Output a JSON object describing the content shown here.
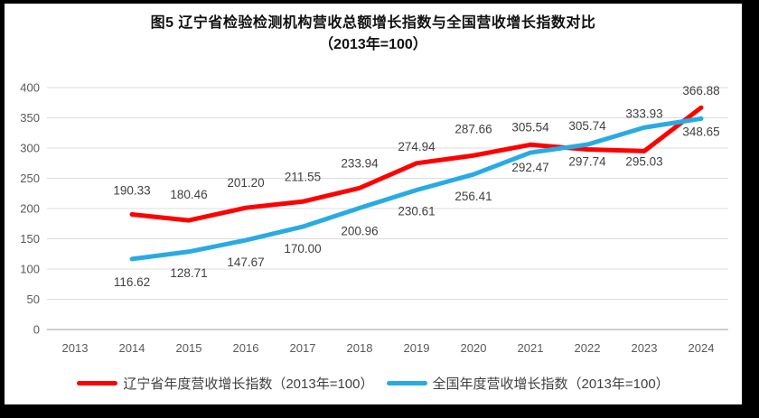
{
  "chart_data": {
    "type": "line",
    "title": "图5  辽宁省检验检测机构营收总额增长指数与全国营收增长指数对比",
    "subtitle": "（2013年=100）",
    "xlabel": "",
    "ylabel": "",
    "categories": [
      "2013",
      "2014",
      "2015",
      "2016",
      "2017",
      "2018",
      "2019",
      "2020",
      "2021",
      "2022",
      "2023",
      "2024"
    ],
    "ylim": [
      0,
      400
    ],
    "ytick_step": 50,
    "grid": true,
    "legend_position": "bottom",
    "series": [
      {
        "name": "辽宁省年度营收增长指数（2013年=100）",
        "color": "#fe0000",
        "values": [
          null,
          190.33,
          180.46,
          201.2,
          211.55,
          233.94,
          274.94,
          287.66,
          305.54,
          297.74,
          295.03,
          366.88
        ],
        "label_dy": [
          null,
          -22,
          -24,
          -23,
          -23,
          -23,
          -14,
          -25,
          -15,
          18,
          16,
          -14
        ]
      },
      {
        "name": "全国年度营收增长指数（2013年=100）",
        "color": "#29abe2",
        "values": [
          null,
          116.62,
          128.71,
          147.67,
          170.0,
          200.96,
          230.61,
          256.41,
          292.47,
          305.74,
          333.93,
          348.65
        ],
        "label_dy": [
          null,
          30,
          28,
          29,
          29,
          30,
          28,
          29,
          21,
          -16,
          -11,
          19
        ]
      }
    ],
    "colors": {
      "grid": "#dcdcdc",
      "axis_line": "#bfbfbf",
      "tick_text": "#595959",
      "label_text": "#404040"
    }
  }
}
